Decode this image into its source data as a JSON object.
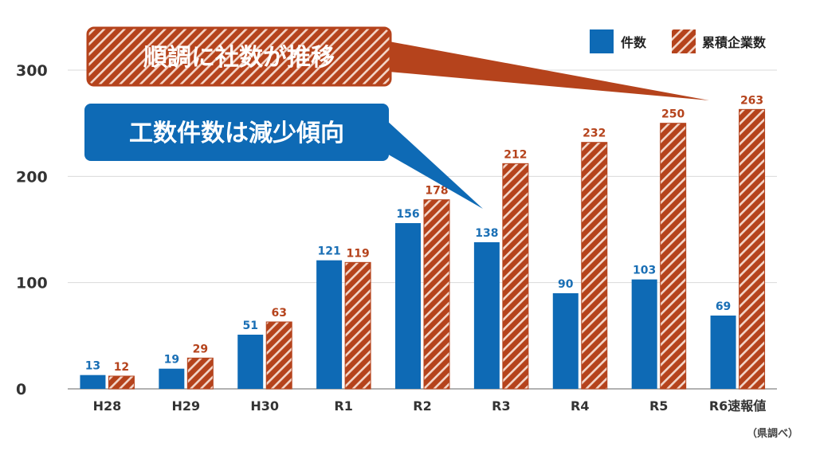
{
  "colors": {
    "blue": "#0e6ab5",
    "red": "#b5431c",
    "hatch": "#f3d6c9"
  },
  "legend": {
    "count_label": "件数",
    "cumulative_label": "累積企業数"
  },
  "callouts": {
    "red": "順調に社数が推移",
    "blue": "工数件数は減少傾向"
  },
  "source_note": "（県調べ）",
  "chart_data": {
    "type": "bar",
    "categories": [
      "H28",
      "H29",
      "H30",
      "R1",
      "R2",
      "R3",
      "R4",
      "R5",
      "R6速報値"
    ],
    "series": [
      {
        "name": "件数",
        "values": [
          13,
          19,
          51,
          121,
          156,
          138,
          90,
          103,
          69
        ]
      },
      {
        "name": "累積企業数",
        "values": [
          12,
          29,
          63,
          119,
          178,
          212,
          232,
          250,
          263
        ]
      }
    ],
    "yticks": [
      0,
      100,
      200,
      300
    ],
    "ylim": [
      0,
      335
    ]
  }
}
